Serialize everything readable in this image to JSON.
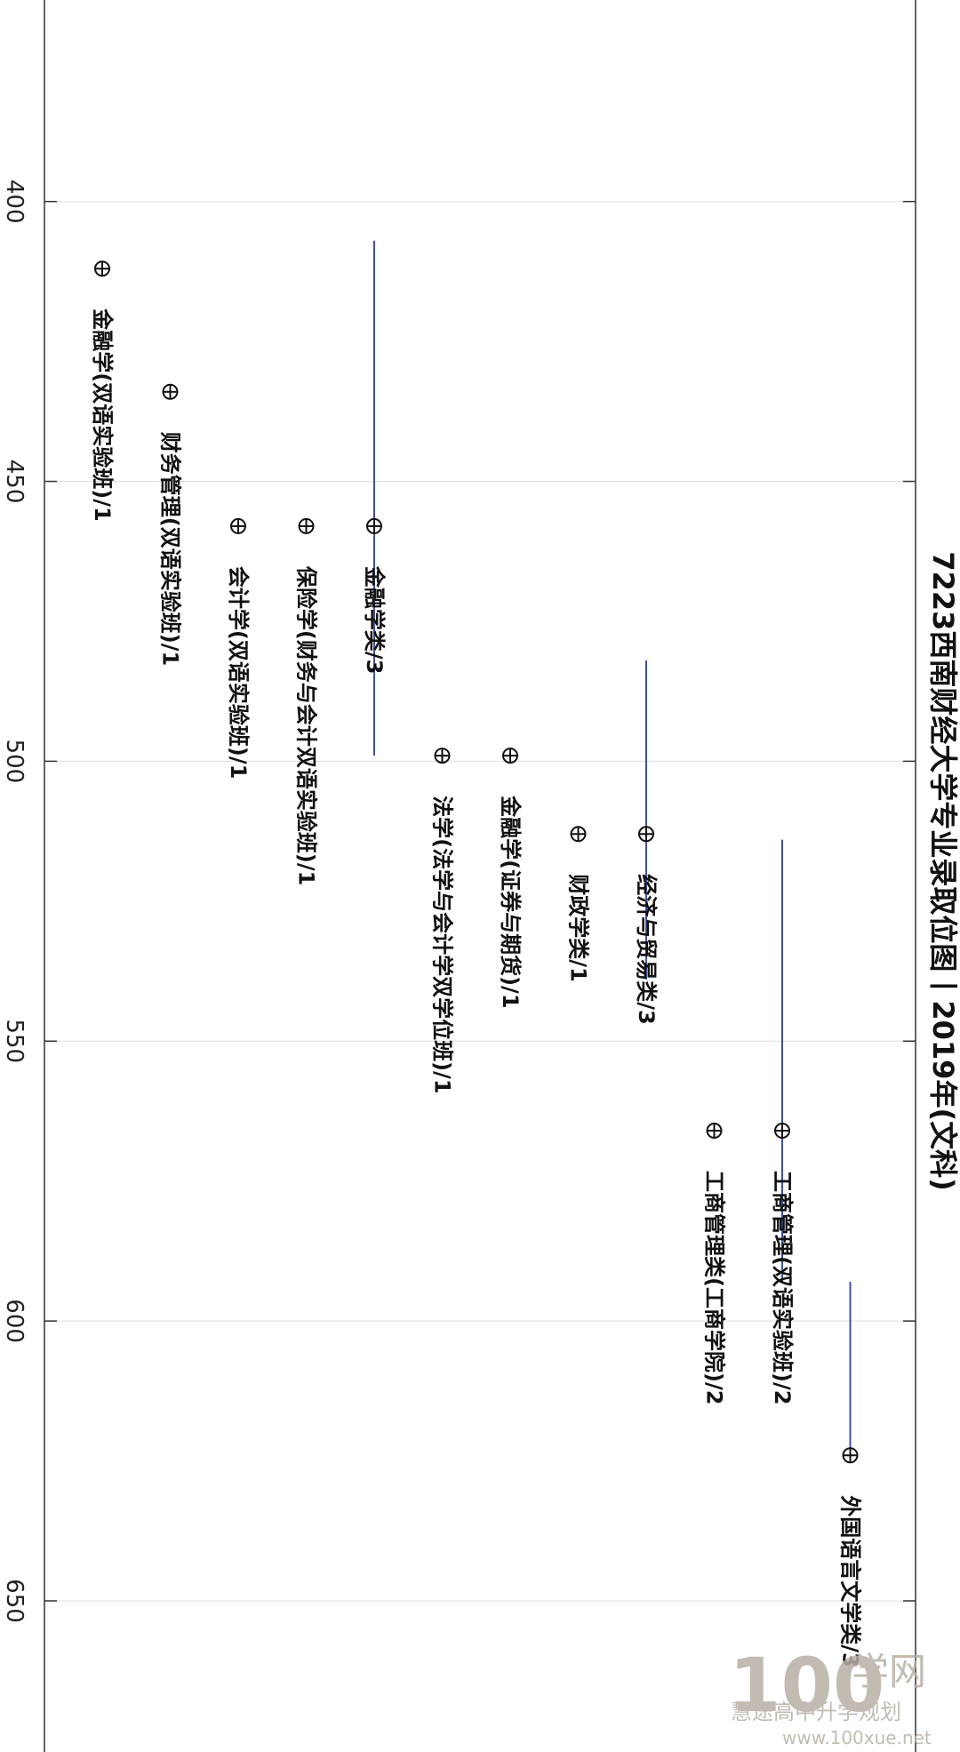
{
  "chart_data": {
    "type": "scatter",
    "title": "7223西南财经大学专业录取位图丨2019年(文科)",
    "orientation": "rotated-90-clockwise",
    "value_axis": {
      "ticks": [
        400,
        450,
        500,
        550,
        600,
        650
      ],
      "range": [
        364,
        677
      ]
    },
    "grid": true,
    "points": [
      {
        "label": "金融学(双语实验班)/1",
        "value": 412,
        "range": null
      },
      {
        "label": "财务管理(双语实验班)/1",
        "value": 434,
        "range": null
      },
      {
        "label": "会计学(双语实验班)/1",
        "value": 458,
        "range": null
      },
      {
        "label": "保险学(财务与会计双语实验班)/1",
        "value": 458,
        "range": null
      },
      {
        "label": "金融学类/3",
        "value": 458,
        "range": [
          407,
          499
        ]
      },
      {
        "label": "法学(法学与会计学双学位班)/1",
        "value": 499,
        "range": null
      },
      {
        "label": "金融学(证券与期货)/1",
        "value": 499,
        "range": null
      },
      {
        "label": "财政学类/1",
        "value": 513,
        "range": null
      },
      {
        "label": "经济与贸易类/3",
        "value": 513,
        "range": [
          482,
          539
        ]
      },
      {
        "label": "工商管理类(工商学院)/2",
        "value": 566,
        "range": null
      },
      {
        "label": "工商管理(双语实验班)/2",
        "value": 566,
        "range": [
          514,
          593
        ]
      },
      {
        "label": "外国语言文学类/3",
        "value": 624,
        "range": [
          593,
          624
        ]
      }
    ]
  },
  "watermark": {
    "logo": "100",
    "brand": "学网",
    "account": "慧途高中升学规划",
    "url": "www.100xue.net"
  }
}
